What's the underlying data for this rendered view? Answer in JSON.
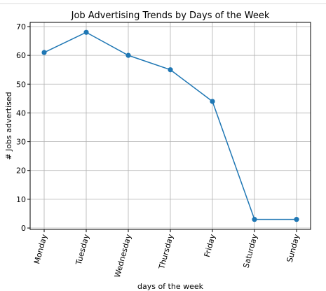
{
  "chart_data": {
    "type": "line",
    "title": "Job Advertising Trends by Days of the Week",
    "xlabel": "days of the week",
    "ylabel": "# Jobs advertised",
    "categories": [
      "Monday",
      "Tuesday",
      "Wednesday",
      "Thursday",
      "Friday",
      "Saturday",
      "Sunday"
    ],
    "series": [
      {
        "values": [
          61,
          68,
          60,
          55,
          44,
          3,
          3
        ]
      }
    ],
    "ylim": [
      0,
      70
    ],
    "yticks": [
      0,
      10,
      20,
      30,
      40,
      50,
      60,
      70
    ],
    "grid": true,
    "marker": "circle",
    "line_color": "#1f77b4"
  }
}
